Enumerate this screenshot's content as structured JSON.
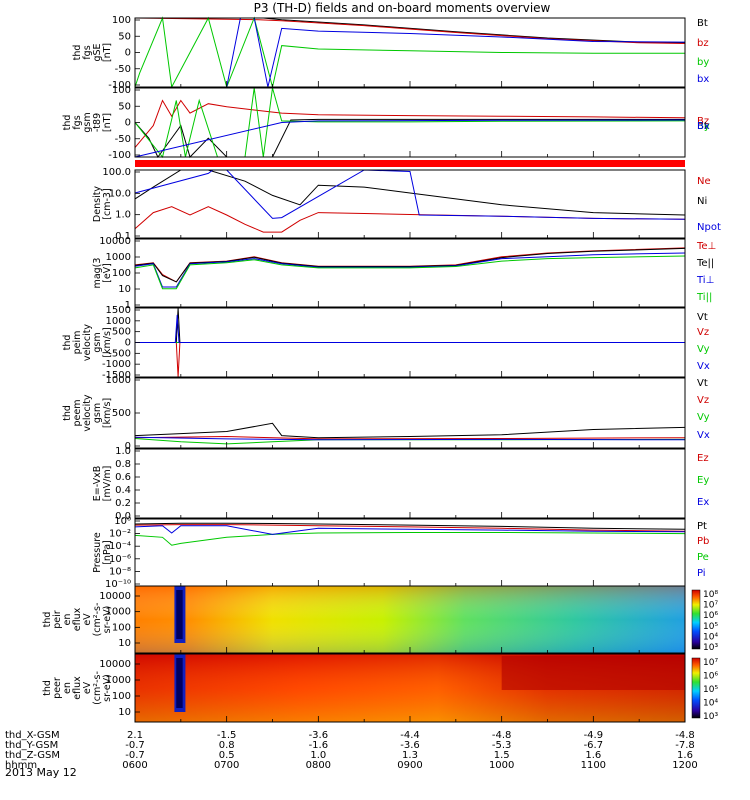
{
  "title": "P3 (TH-D) fields and on-board moments overview",
  "footer": {
    "rows": [
      {
        "label": "thd_X-GSM",
        "values": [
          "2.1",
          "-1.5",
          "-3.6",
          "-4.4",
          "-4.8",
          "-4.9",
          "-4.8"
        ]
      },
      {
        "label": "thd_Y-GSM",
        "values": [
          "-0.7",
          "0.8",
          "-1.6",
          "-3.6",
          "-5.3",
          "-6.7",
          "-7.8"
        ]
      },
      {
        "label": "thd_Z-GSM",
        "values": [
          "-0.7",
          "0.5",
          "1.0",
          "1.3",
          "1.5",
          "1.6",
          "1.6"
        ]
      },
      {
        "label": "hhmm",
        "values": [
          "0600",
          "0700",
          "0800",
          "0900",
          "1000",
          "1100",
          "1200"
        ]
      }
    ],
    "date": "2013 May 12"
  },
  "colors": {
    "black": "#000000",
    "red": "#d00000",
    "green": "#00c800",
    "blue": "#0000e0"
  },
  "chart_data": [
    {
      "type": "line",
      "panel": "fgs_gse",
      "ylabel": [
        "thd",
        "fgs",
        "gSE",
        "[nT]"
      ],
      "ylim": [
        -100,
        100
      ],
      "yticks": [
        "100",
        "50",
        "0",
        "-50",
        "-100"
      ],
      "x_range_hours": [
        6,
        12
      ],
      "series": [
        {
          "name": "Bt",
          "color": "#000000",
          "x": [
            6.0,
            6.5,
            7.3,
            7.4,
            7.6,
            8.5,
            9.5,
            10.5,
            11.5,
            12.0
          ],
          "y": [
            100,
            110,
            110,
            115,
            95,
            80,
            60,
            42,
            30,
            28
          ]
        },
        {
          "name": "bz",
          "color": "#d00000",
          "x": [
            6.0,
            7.35,
            7.6,
            8.5,
            9.5,
            10.5,
            11.5,
            12.0
          ],
          "y": [
            100,
            95,
            92,
            78,
            58,
            40,
            28,
            26
          ]
        },
        {
          "name": "by",
          "color": "#00c800",
          "x": [
            6.0,
            6.05,
            6.3,
            6.4,
            6.8,
            7.0,
            7.3,
            7.5,
            7.6,
            8.0,
            9.0,
            10.0,
            11.0,
            12.0
          ],
          "y": [
            -100,
            -60,
            100,
            -100,
            100,
            -100,
            100,
            -100,
            20,
            10,
            5,
            0,
            -2,
            -2
          ]
        },
        {
          "name": "bx",
          "color": "#0000e0",
          "x": [
            6.0,
            7.0,
            7.15,
            7.3,
            7.45,
            7.6,
            8.0,
            9.0,
            10.0,
            11.0,
            12.0
          ],
          "y": [
            -100,
            -100,
            100,
            100,
            -100,
            70,
            62,
            55,
            45,
            32,
            30
          ]
        }
      ]
    },
    {
      "type": "line",
      "panel": "fgs_gsm",
      "ylabel": [
        "thd",
        "fgs",
        "gsm",
        "-t89",
        "[nT]"
      ],
      "ylim": [
        -120,
        100
      ],
      "yticks": [
        "100",
        "50",
        "0",
        "-50",
        "-100"
      ],
      "x_range_hours": [
        6,
        12
      ],
      "series": [
        {
          "name": "Bz",
          "color": "#d00000",
          "x": [
            6.0,
            6.2,
            6.3,
            6.4,
            6.5,
            6.6,
            6.8,
            7.0,
            7.3,
            7.6,
            8.0,
            9.0,
            10.0,
            11.0,
            12.0
          ],
          "y": [
            -90,
            -20,
            60,
            10,
            60,
            20,
            50,
            40,
            30,
            20,
            15,
            12,
            10,
            8,
            5
          ]
        },
        {
          "name": "Bt",
          "color": "#000000",
          "x": [
            6.0,
            6.15,
            6.25,
            6.35,
            6.5,
            6.6,
            6.8,
            7.0,
            7.2,
            7.3,
            7.5,
            7.7,
            8.0,
            9.0,
            10.0,
            11.0,
            12.0
          ],
          "y": [
            -10,
            -60,
            -120,
            -80,
            -20,
            -120,
            -60,
            -120,
            -120,
            -120,
            -120,
            -2,
            0,
            0,
            0,
            0,
            0
          ]
        },
        {
          "name": "By",
          "color": "#00c800",
          "x": [
            6.0,
            6.3,
            6.45,
            6.55,
            6.7,
            6.9,
            7.0,
            7.2,
            7.3,
            7.4,
            7.5,
            7.6,
            8.0,
            9.0,
            10.0,
            12.0
          ],
          "y": [
            -10,
            -120,
            60,
            -120,
            60,
            -120,
            -120,
            -120,
            100,
            -120,
            100,
            -5,
            -8,
            -8,
            -6,
            -5
          ]
        },
        {
          "name": "Bx",
          "color": "#0000e0",
          "x": [
            6.0,
            7.6,
            8.0,
            10.0,
            12.0
          ],
          "y": [
            -120,
            -10,
            -5,
            -3,
            -2
          ]
        }
      ]
    },
    {
      "type": "line",
      "panel": "density",
      "scale": "log",
      "ylabel": [
        "Density",
        "[cm-3]"
      ],
      "ylim": [
        0.1,
        300
      ],
      "yticks": [
        "100.0",
        "10.0",
        "1.0",
        "0.1"
      ],
      "x_range_hours": [
        6,
        12
      ],
      "series": [
        {
          "name": "Ne",
          "color": "#d00000",
          "x": [
            6.0,
            6.2,
            6.4,
            6.6,
            6.8,
            7.0,
            7.2,
            7.4,
            7.6,
            7.8,
            8.0,
            8.5,
            9.0,
            10.0,
            11.0,
            12.0
          ],
          "y": [
            0.3,
            2.0,
            4.0,
            1.5,
            4.0,
            1.5,
            0.5,
            0.2,
            0.2,
            0.8,
            2.0,
            1.8,
            1.6,
            1.3,
            1.0,
            0.9
          ]
        },
        {
          "name": "Ni",
          "color": "#000000",
          "x": [
            6.0,
            6.2,
            6.5,
            6.8,
            7.2,
            7.5,
            7.8,
            8.0,
            8.5,
            9.0,
            10.0,
            11.0,
            12.0
          ],
          "y": [
            10,
            40,
            300,
            300,
            80,
            15,
            5,
            50,
            40,
            20,
            5,
            2,
            1.5
          ]
        },
        {
          "name": "Npot",
          "color": "#0000e0",
          "x": [
            6.0,
            6.8,
            6.85,
            7.0,
            7.5,
            7.6,
            8.5,
            9.0,
            9.1,
            10.0,
            11.0,
            12.0
          ],
          "y": [
            20,
            200,
            300,
            300,
            1.0,
            1.1,
            300,
            250,
            1.5,
            1.3,
            1.0,
            0.9
          ]
        }
      ]
    },
    {
      "type": "line",
      "panel": "temperature",
      "scale": "log",
      "ylabel": [
        "mag(3",
        "[eV]"
      ],
      "ylim": [
        1,
        10000
      ],
      "yticks": [
        "10000",
        "1000",
        "100",
        "10",
        "1"
      ],
      "x_range_hours": [
        6,
        12
      ],
      "series": [
        {
          "name": "Te⊥",
          "color": "#d00000",
          "x": [
            6.0,
            6.2,
            6.3,
            6.45,
            6.6,
            7.0,
            7.3,
            7.6,
            8.0,
            9.0,
            9.5,
            10.0,
            10.5,
            11.0,
            12.0
          ],
          "y": [
            300,
            400,
            80,
            30,
            400,
            500,
            900,
            400,
            250,
            250,
            300,
            900,
            1500,
            2000,
            3000
          ]
        },
        {
          "name": "Te||",
          "color": "#000000",
          "x": [
            6.0,
            6.2,
            6.3,
            6.45,
            6.6,
            7.0,
            7.3,
            7.6,
            8.0,
            9.0,
            9.5,
            10.0,
            10.5,
            11.0,
            12.0
          ],
          "y": [
            280,
            380,
            70,
            30,
            380,
            480,
            850,
            380,
            240,
            240,
            280,
            800,
            1400,
            1900,
            2800
          ]
        },
        {
          "name": "Ti⊥",
          "color": "#0000e0",
          "x": [
            6.0,
            6.2,
            6.3,
            6.45,
            6.6,
            7.0,
            7.3,
            7.6,
            8.0,
            9.0,
            9.5,
            10.0,
            10.5,
            11.0,
            12.0
          ],
          "y": [
            250,
            350,
            15,
            15,
            350,
            450,
            700,
            350,
            220,
            220,
            260,
            700,
            900,
            1200,
            1500
          ]
        },
        {
          "name": "Ti||",
          "color": "#00c800",
          "x": [
            6.0,
            6.2,
            6.3,
            6.45,
            6.6,
            7.0,
            7.3,
            7.6,
            8.0,
            9.0,
            9.5,
            10.0,
            10.5,
            11.0,
            12.0
          ],
          "y": [
            200,
            300,
            12,
            12,
            300,
            400,
            600,
            300,
            200,
            200,
            240,
            500,
            700,
            800,
            1000
          ]
        }
      ]
    },
    {
      "type": "line",
      "panel": "peim_velocity",
      "ylabel": [
        "thd",
        "peim",
        "velocity",
        "gsm",
        "[km/s]"
      ],
      "ylim": [
        -1500,
        1500
      ],
      "yticks": [
        "1500",
        "1000",
        "500",
        "0",
        "-500",
        "-1000",
        "-1500"
      ],
      "x_range_hours": [
        6,
        12
      ],
      "series": [
        {
          "name": "Vt",
          "color": "#000000",
          "x": [
            6.0,
            6.45,
            6.47,
            6.49,
            12.0
          ],
          "y": [
            0,
            0,
            1500,
            0,
            0
          ]
        },
        {
          "name": "Vz",
          "color": "#d00000",
          "x": [
            6.0,
            6.45,
            6.47,
            6.49,
            12.0
          ],
          "y": [
            0,
            0,
            -1500,
            0,
            0
          ]
        },
        {
          "name": "Vy",
          "color": "#00c800",
          "x": [
            6.0,
            12.0
          ],
          "y": [
            0,
            0
          ]
        },
        {
          "name": "Vx",
          "color": "#0000e0",
          "x": [
            6.0,
            6.44,
            6.46,
            6.48,
            12.0
          ],
          "y": [
            0,
            0,
            1200,
            0,
            0
          ]
        }
      ]
    },
    {
      "type": "line",
      "panel": "peem_velocity",
      "ylabel": [
        "thd",
        "peem",
        "velocity",
        "gsm",
        "[km/s]"
      ],
      "ylim": [
        -200,
        1500
      ],
      "yticks": [
        "1000",
        "500",
        "0"
      ],
      "x_range_hours": [
        6,
        12
      ],
      "series": [
        {
          "name": "Vt",
          "color": "#000000",
          "x": [
            6.0,
            6.5,
            7.0,
            7.5,
            7.6,
            8.0,
            9.0,
            10.0,
            11.0,
            12.0
          ],
          "y": [
            100,
            150,
            200,
            400,
            100,
            50,
            80,
            120,
            250,
            300
          ]
        },
        {
          "name": "Vz",
          "color": "#d00000",
          "x": [
            6.0,
            7.0,
            8.0,
            10.0,
            12.0
          ],
          "y": [
            50,
            80,
            20,
            30,
            50
          ]
        },
        {
          "name": "Vy",
          "color": "#00c800",
          "x": [
            6.0,
            6.5,
            7.0,
            7.5,
            8.0,
            10.0,
            12.0
          ],
          "y": [
            30,
            -50,
            -100,
            -50,
            0,
            0,
            10
          ]
        },
        {
          "name": "Vx",
          "color": "#0000e0",
          "x": [
            6.0,
            7.0,
            8.0,
            10.0,
            12.0
          ],
          "y": [
            60,
            20,
            0,
            10,
            0
          ]
        }
      ]
    },
    {
      "type": "line",
      "panel": "e_vxb",
      "ylabel": [
        "E=-VxB",
        "[mV/m]"
      ],
      "ylim": [
        0,
        1.0
      ],
      "yticks": [
        "1.0",
        "0.8",
        "0.6",
        "0.4",
        "0.2",
        "0.0"
      ],
      "x_range_hours": [
        6,
        12
      ],
      "series": [
        {
          "name": "Ez",
          "color": "#d00000",
          "x": [],
          "y": []
        },
        {
          "name": "Ey",
          "color": "#00c800",
          "x": [],
          "y": []
        },
        {
          "name": "Ex",
          "color": "#0000e0",
          "x": [],
          "y": []
        }
      ]
    },
    {
      "type": "line",
      "panel": "pressure",
      "scale": "log",
      "ylabel": [
        "Pressure",
        "[nPa]"
      ],
      "ylim": [
        1e-10,
        10
      ],
      "yticks": [
        "10⁰",
        "10⁻²",
        "10⁻⁴",
        "10⁻⁶",
        "10⁻⁸",
        "10⁻¹⁰"
      ],
      "x_range_hours": [
        6,
        12
      ],
      "series": [
        {
          "name": "Pt",
          "color": "#000000",
          "x": [
            6.0,
            6.5,
            7.0,
            7.5,
            8.0,
            9.0,
            10.0,
            11.0,
            12.0
          ],
          "y": [
            1.5,
            2,
            2,
            1.8,
            1.5,
            1.0,
            0.6,
            0.3,
            0.2
          ]
        },
        {
          "name": "Pb",
          "color": "#d00000",
          "x": [
            6.0,
            6.5,
            7.0,
            7.5,
            8.0,
            9.0,
            10.0,
            11.0,
            12.0
          ],
          "y": [
            1,
            1.2,
            1.2,
            1.0,
            0.8,
            0.5,
            0.3,
            0.15,
            0.1
          ]
        },
        {
          "name": "Pe",
          "color": "#00c800",
          "x": [
            6.0,
            6.3,
            6.4,
            6.5,
            7.0,
            7.5,
            8.0,
            9.0,
            10.0,
            11.0,
            12.0
          ],
          "y": [
            0.02,
            0.01,
            0.0005,
            0.001,
            0.01,
            0.03,
            0.05,
            0.06,
            0.06,
            0.05,
            0.04
          ]
        },
        {
          "name": "Pi",
          "color": "#0000e0",
          "x": [
            6.0,
            6.3,
            6.4,
            6.5,
            7.0,
            7.5,
            8.0,
            9.0,
            10.0,
            11.0,
            12.0
          ],
          "y": [
            0.5,
            0.8,
            0.05,
            0.8,
            0.8,
            0.03,
            0.3,
            0.2,
            0.15,
            0.1,
            0.08
          ]
        }
      ]
    },
    {
      "type": "heatmap",
      "panel": "peir_spectrogram",
      "ylabel": [
        "thd",
        "peir",
        "en",
        "eflux",
        "eV",
        "(cm²-s-",
        "sr-eV)"
      ],
      "yticks": [
        "10000",
        "1000",
        "100",
        "10"
      ],
      "colorbar_ticks": [
        "10⁸",
        "10⁷",
        "10⁶",
        "10⁵",
        "10⁴",
        "10³"
      ],
      "x_range_hours": [
        6,
        12
      ]
    },
    {
      "type": "heatmap",
      "panel": "peer_spectrogram",
      "ylabel": [
        "thd",
        "peer",
        "en",
        "eflux",
        "eV",
        "(cm²-s-",
        "sr-eV)"
      ],
      "yticks": [
        "10000",
        "1000",
        "100",
        "10"
      ],
      "colorbar_ticks": [
        "10⁷",
        "10⁶",
        "10⁵",
        "10⁴",
        "10³"
      ],
      "x_range_hours": [
        6,
        12
      ]
    }
  ]
}
